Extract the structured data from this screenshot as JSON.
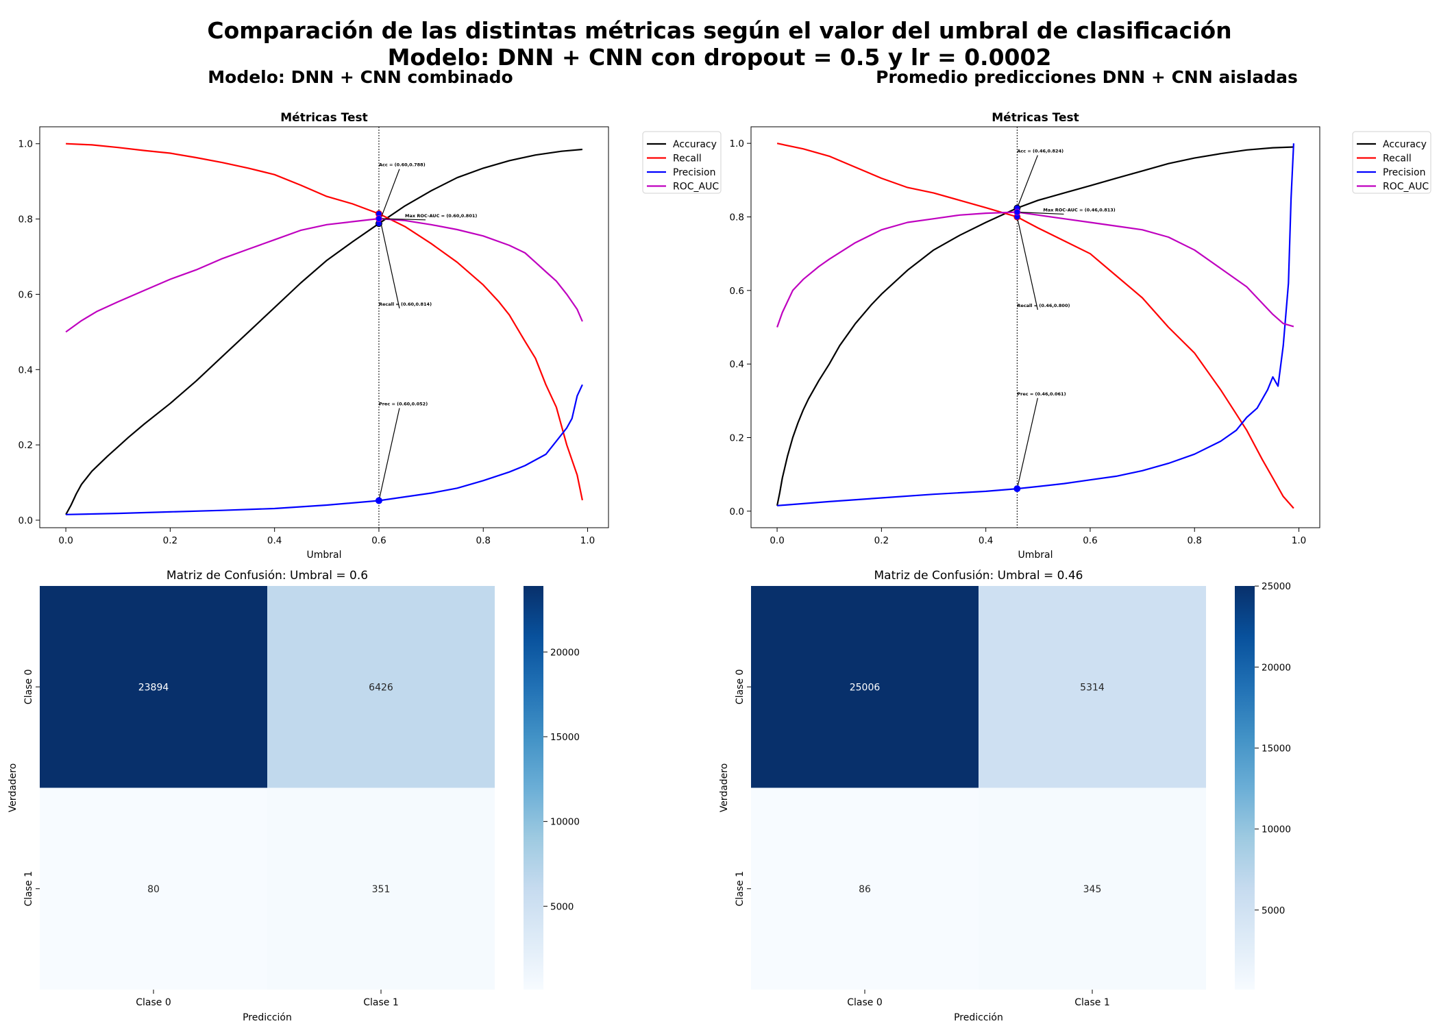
{
  "figure": {
    "title_line1": "Comparación de las distintas métricas según el valor del umbral de clasificación",
    "title_line2": "Modelo: DNN + CNN con dropout = 0.5 y lr = 0.0002",
    "left_subtitle": "Modelo: DNN + CNN combinado",
    "right_subtitle": "Promedio predicciones DNN + CNN aisladas"
  },
  "chart_data": [
    {
      "type": "line",
      "title": "Métricas Test",
      "xlabel": "Umbral",
      "ylabel": "",
      "xlim": [
        -0.05,
        1.04
      ],
      "ylim": [
        -0.02,
        1.045
      ],
      "xticks": [
        "0.0",
        "0.2",
        "0.4",
        "0.6",
        "0.8",
        "1.0"
      ],
      "yticks": [
        "0.0",
        "0.2",
        "0.4",
        "0.6",
        "0.8",
        "1.0"
      ],
      "grid": false,
      "legend_position": "outside-upper-right",
      "vline_x": 0.6,
      "series": [
        {
          "name": "Accuracy",
          "color": "#000000",
          "x": [
            0.0,
            0.01,
            0.02,
            0.03,
            0.05,
            0.08,
            0.1,
            0.12,
            0.15,
            0.2,
            0.25,
            0.3,
            0.35,
            0.4,
            0.45,
            0.5,
            0.55,
            0.6,
            0.65,
            0.7,
            0.75,
            0.8,
            0.85,
            0.9,
            0.95,
            0.99
          ],
          "y": [
            0.015,
            0.04,
            0.07,
            0.095,
            0.13,
            0.17,
            0.195,
            0.22,
            0.255,
            0.31,
            0.37,
            0.435,
            0.5,
            0.565,
            0.63,
            0.69,
            0.74,
            0.788,
            0.835,
            0.875,
            0.91,
            0.935,
            0.955,
            0.97,
            0.98,
            0.985
          ]
        },
        {
          "name": "Recall",
          "color": "#ff0000",
          "x": [
            0.0,
            0.05,
            0.1,
            0.15,
            0.2,
            0.25,
            0.3,
            0.35,
            0.4,
            0.45,
            0.5,
            0.55,
            0.6,
            0.65,
            0.7,
            0.75,
            0.8,
            0.83,
            0.85,
            0.88,
            0.9,
            0.92,
            0.94,
            0.96,
            0.98,
            0.99
          ],
          "y": [
            1.0,
            0.997,
            0.99,
            0.982,
            0.975,
            0.963,
            0.95,
            0.935,
            0.918,
            0.89,
            0.86,
            0.84,
            0.814,
            0.78,
            0.735,
            0.685,
            0.625,
            0.58,
            0.545,
            0.475,
            0.43,
            0.36,
            0.3,
            0.2,
            0.12,
            0.053
          ]
        },
        {
          "name": "Precision",
          "color": "#0000ff",
          "x": [
            0.0,
            0.1,
            0.2,
            0.3,
            0.4,
            0.5,
            0.6,
            0.65,
            0.7,
            0.75,
            0.8,
            0.85,
            0.88,
            0.9,
            0.92,
            0.94,
            0.96,
            0.97,
            0.98,
            0.99
          ],
          "y": [
            0.015,
            0.018,
            0.022,
            0.026,
            0.031,
            0.04,
            0.052,
            0.062,
            0.072,
            0.085,
            0.105,
            0.128,
            0.145,
            0.16,
            0.175,
            0.21,
            0.245,
            0.27,
            0.33,
            0.36
          ]
        },
        {
          "name": "ROC_AUC",
          "color": "#bf00bf",
          "x": [
            0.0,
            0.03,
            0.06,
            0.1,
            0.15,
            0.2,
            0.25,
            0.3,
            0.35,
            0.4,
            0.45,
            0.5,
            0.55,
            0.6,
            0.65,
            0.7,
            0.75,
            0.8,
            0.85,
            0.88,
            0.9,
            0.92,
            0.94,
            0.96,
            0.98,
            0.99
          ],
          "y": [
            0.5,
            0.53,
            0.555,
            0.58,
            0.61,
            0.64,
            0.665,
            0.695,
            0.72,
            0.745,
            0.77,
            0.785,
            0.793,
            0.801,
            0.796,
            0.785,
            0.772,
            0.755,
            0.73,
            0.71,
            0.685,
            0.66,
            0.635,
            0.6,
            0.56,
            0.528
          ]
        }
      ],
      "markers": [
        {
          "series": "Accuracy",
          "x": 0.6,
          "y": 0.788
        },
        {
          "series": "Recall",
          "x": 0.6,
          "y": 0.814
        },
        {
          "series": "Precision",
          "x": 0.6,
          "y": 0.052
        },
        {
          "series": "ROC_AUC",
          "x": 0.6,
          "y": 0.801
        }
      ],
      "annotations": [
        {
          "text": "Acc = (0.60,0.788)",
          "x": 0.6,
          "y": 0.788,
          "tx": 0.6,
          "ty": 0.94
        },
        {
          "text": "Max ROC-AUC = (0.60,0.801)",
          "x": 0.6,
          "y": 0.801,
          "tx": 0.65,
          "ty": 0.805
        },
        {
          "text": "Recall = (0.60,0.814)",
          "x": 0.6,
          "y": 0.814,
          "tx": 0.6,
          "ty": 0.57
        },
        {
          "text": "Prec = (0.60,0.052)",
          "x": 0.6,
          "y": 0.052,
          "tx": 0.6,
          "ty": 0.305
        }
      ]
    },
    {
      "type": "line",
      "title": "Métricas Test",
      "xlabel": "Umbral",
      "ylabel": "",
      "xlim": [
        -0.05,
        1.04
      ],
      "ylim": [
        -0.045,
        1.045
      ],
      "xticks": [
        "0.0",
        "0.2",
        "0.4",
        "0.6",
        "0.8",
        "1.0"
      ],
      "yticks": [
        "0.0",
        "0.2",
        "0.4",
        "0.6",
        "0.8",
        "1.0"
      ],
      "grid": false,
      "legend_position": "outside-upper-right",
      "vline_x": 0.46,
      "series": [
        {
          "name": "Accuracy",
          "color": "#000000",
          "x": [
            0.0,
            0.005,
            0.01,
            0.02,
            0.03,
            0.04,
            0.05,
            0.06,
            0.08,
            0.1,
            0.12,
            0.15,
            0.18,
            0.2,
            0.25,
            0.3,
            0.35,
            0.4,
            0.46,
            0.5,
            0.55,
            0.6,
            0.65,
            0.7,
            0.75,
            0.8,
            0.85,
            0.9,
            0.95,
            0.99
          ],
          "y": [
            0.015,
            0.05,
            0.09,
            0.15,
            0.2,
            0.24,
            0.275,
            0.305,
            0.355,
            0.4,
            0.45,
            0.51,
            0.56,
            0.59,
            0.655,
            0.71,
            0.75,
            0.785,
            0.824,
            0.845,
            0.865,
            0.885,
            0.905,
            0.925,
            0.945,
            0.96,
            0.972,
            0.982,
            0.988,
            0.99
          ]
        },
        {
          "name": "Recall",
          "color": "#ff0000",
          "x": [
            0.0,
            0.05,
            0.1,
            0.15,
            0.2,
            0.25,
            0.3,
            0.35,
            0.4,
            0.46,
            0.5,
            0.55,
            0.6,
            0.65,
            0.7,
            0.75,
            0.8,
            0.85,
            0.9,
            0.93,
            0.95,
            0.97,
            0.99
          ],
          "y": [
            1.0,
            0.985,
            0.965,
            0.935,
            0.905,
            0.88,
            0.865,
            0.845,
            0.825,
            0.8,
            0.77,
            0.735,
            0.7,
            0.64,
            0.58,
            0.5,
            0.43,
            0.33,
            0.22,
            0.14,
            0.09,
            0.04,
            0.008
          ]
        },
        {
          "name": "Precision",
          "color": "#0000ff",
          "x": [
            0.0,
            0.1,
            0.2,
            0.3,
            0.4,
            0.46,
            0.5,
            0.55,
            0.6,
            0.65,
            0.7,
            0.75,
            0.8,
            0.85,
            0.88,
            0.9,
            0.92,
            0.94,
            0.95,
            0.96,
            0.97,
            0.98,
            0.985,
            0.99
          ],
          "y": [
            0.015,
            0.026,
            0.036,
            0.046,
            0.054,
            0.061,
            0.067,
            0.075,
            0.085,
            0.095,
            0.11,
            0.13,
            0.155,
            0.19,
            0.22,
            0.255,
            0.28,
            0.33,
            0.365,
            0.34,
            0.45,
            0.62,
            0.85,
            1.0
          ]
        },
        {
          "name": "ROC_AUC",
          "color": "#bf00bf",
          "x": [
            0.0,
            0.01,
            0.02,
            0.03,
            0.05,
            0.08,
            0.1,
            0.15,
            0.2,
            0.25,
            0.3,
            0.35,
            0.4,
            0.46,
            0.5,
            0.55,
            0.6,
            0.65,
            0.7,
            0.75,
            0.8,
            0.85,
            0.9,
            0.93,
            0.95,
            0.97,
            0.99
          ],
          "y": [
            0.5,
            0.54,
            0.57,
            0.6,
            0.63,
            0.665,
            0.685,
            0.73,
            0.765,
            0.785,
            0.795,
            0.805,
            0.81,
            0.813,
            0.805,
            0.795,
            0.785,
            0.775,
            0.765,
            0.745,
            0.71,
            0.66,
            0.61,
            0.565,
            0.535,
            0.51,
            0.502
          ]
        }
      ],
      "markers": [
        {
          "series": "Accuracy",
          "x": 0.46,
          "y": 0.824
        },
        {
          "series": "Recall",
          "x": 0.46,
          "y": 0.8
        },
        {
          "series": "Precision",
          "x": 0.46,
          "y": 0.061
        },
        {
          "series": "ROC_AUC",
          "x": 0.46,
          "y": 0.813
        }
      ],
      "annotations": [
        {
          "text": "Acc = (0.46,0.824)",
          "x": 0.46,
          "y": 0.824,
          "tx": 0.46,
          "ty": 0.975
        },
        {
          "text": "Max ROC-AUC = (0.46,0.813)",
          "x": 0.46,
          "y": 0.813,
          "tx": 0.51,
          "ty": 0.815
        },
        {
          "text": "Recall = (0.46,0.800)",
          "x": 0.46,
          "y": 0.8,
          "tx": 0.46,
          "ty": 0.555
        },
        {
          "text": "Prec = (0.46,0.061)",
          "x": 0.46,
          "y": 0.061,
          "tx": 0.46,
          "ty": 0.315
        }
      ]
    },
    {
      "type": "heatmap",
      "title": "Matriz de Confusión: Umbral = 0.6",
      "xlabel": "Predicción",
      "ylabel": "Verdadero",
      "x_categories": [
        "Clase 0",
        "Clase 1"
      ],
      "y_categories": [
        "Clase 0",
        "Clase 1"
      ],
      "values": [
        [
          23894,
          6426
        ],
        [
          80,
          351
        ]
      ],
      "colorbar_range": [
        80,
        23894
      ],
      "colorbar_ticks": [
        "5000",
        "10000",
        "15000",
        "20000"
      ],
      "colorbar_tick_values": [
        5000,
        10000,
        15000,
        20000
      ],
      "colormap": "Blues"
    },
    {
      "type": "heatmap",
      "title": "Matriz de Confusión: Umbral = 0.46",
      "xlabel": "Predicción",
      "ylabel": "Verdadero",
      "x_categories": [
        "Clase 0",
        "Clase 1"
      ],
      "y_categories": [
        "Clase 0",
        "Clase 1"
      ],
      "values": [
        [
          25006,
          5314
        ],
        [
          86,
          345
        ]
      ],
      "colorbar_range": [
        86,
        25006
      ],
      "colorbar_ticks": [
        "5000",
        "10000",
        "15000",
        "20000",
        "25000"
      ],
      "colorbar_tick_values": [
        5000,
        10000,
        15000,
        20000,
        25000
      ],
      "colormap": "Blues"
    }
  ]
}
